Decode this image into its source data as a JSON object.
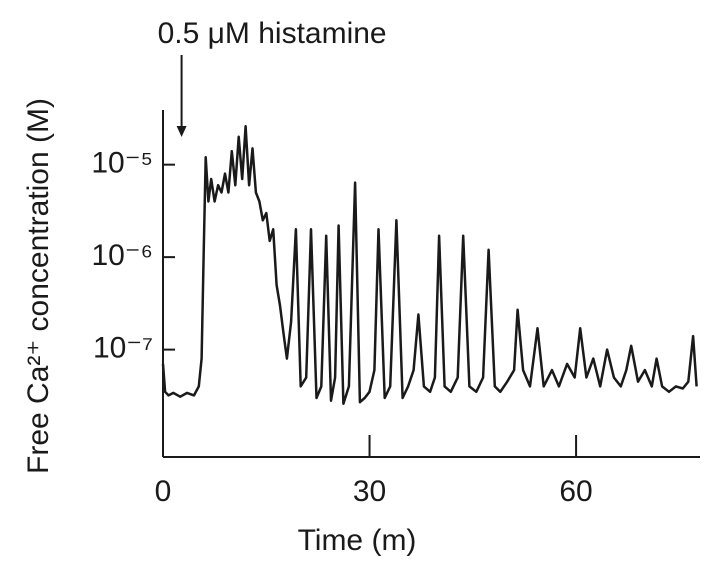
{
  "chart_data": {
    "type": "line",
    "annotation": {
      "text": "0.5 μM histamine",
      "x": 2.7
    },
    "x_label": "Time (m)",
    "y_label": "Free Ca²⁺ concentration (M)",
    "color": "#1a1a1a",
    "ylog": true,
    "grid": false,
    "xlim": [
      0,
      78
    ],
    "xticks": [
      0,
      30,
      60
    ],
    "ylim": [
      6.9e-09,
      3.9e-05
    ],
    "yticks": [
      {
        "value": 1e-07,
        "label": "10⁻⁷"
      },
      {
        "value": 1e-06,
        "label": "10⁻⁶"
      },
      {
        "value": 1e-05,
        "label": "10⁻⁵"
      }
    ],
    "x": [
      0,
      0.3,
      0.8,
      1.5,
      2.5,
      3.5,
      4.5,
      5.2,
      5.6,
      5.9,
      6.2,
      6.6,
      7,
      7.5,
      8,
      8.5,
      9,
      9.5,
      10,
      10.5,
      11,
      11.5,
      12,
      12.5,
      13,
      13.5,
      14,
      14.5,
      15,
      15.5,
      16,
      16.5,
      17,
      17.5,
      18,
      18.6,
      19.3,
      20,
      20.8,
      21.5,
      22.3,
      23,
      23.7,
      24.4,
      25,
      25.5,
      26.2,
      27,
      27.9,
      28.6,
      29.3,
      30,
      30.7,
      31.3,
      32.2,
      33,
      33.9,
      34.8,
      35.6,
      36.4,
      37.1,
      37.9,
      38.8,
      39.5,
      40.1,
      40.9,
      41.8,
      42.8,
      43.6,
      44.5,
      45.5,
      46.5,
      47.3,
      48.2,
      49,
      50,
      51,
      51.5,
      52.3,
      53.3,
      54.4,
      55.3,
      56.5,
      57.5,
      58.7,
      59.8,
      60.6,
      61.5,
      62.5,
      63.5,
      64.5,
      65.5,
      66.5,
      67.3,
      68,
      69,
      70,
      71,
      71.7,
      72.5,
      73.5,
      74.5,
      75.5,
      76.3,
      77,
      77.5
    ],
    "values": [
      7e-08,
      3.5e-08,
      3.2e-08,
      3.4e-08,
      3.1e-08,
      3.4e-08,
      3.2e-08,
      4e-08,
      8e-08,
      1e-06,
      1.2e-05,
      4e-06,
      7e-06,
      4e-06,
      6e-06,
      5e-06,
      8e-06,
      5e-06,
      1.4e-05,
      6e-06,
      2e-05,
      7e-06,
      2.6e-05,
      6e-06,
      1.5e-05,
      5e-06,
      4e-06,
      2.5e-06,
      3e-06,
      1.5e-06,
      2e-06,
      5e-07,
      3e-07,
      1.5e-07,
      8e-08,
      2e-07,
      2e-06,
      4e-08,
      5e-08,
      2e-06,
      3e-08,
      4e-08,
      1.7e-06,
      2.8e-08,
      5e-08,
      2.2e-06,
      2.6e-08,
      4e-08,
      6.4e-06,
      2.7e-08,
      3e-08,
      3.5e-08,
      6e-08,
      2e-06,
      3e-08,
      4e-08,
      2.5e-06,
      3e-08,
      4e-08,
      6e-08,
      2.4e-07,
      4e-08,
      3.5e-08,
      5e-08,
      1.7e-06,
      4e-08,
      3.5e-08,
      5e-08,
      1.7e-06,
      4e-08,
      3.5e-08,
      5e-08,
      1.2e-06,
      4e-08,
      3.5e-08,
      4.5e-08,
      6e-08,
      2.7e-07,
      6e-08,
      4e-08,
      1.7e-07,
      4e-08,
      6e-08,
      4e-08,
      7e-08,
      5e-08,
      1.7e-07,
      5e-08,
      8e-08,
      4e-08,
      1e-07,
      5e-08,
      4e-08,
      6e-08,
      1.1e-07,
      4.5e-08,
      6e-08,
      4e-08,
      8e-08,
      4e-08,
      3.5e-08,
      4e-08,
      3.8e-08,
      4.5e-08,
      1.4e-07,
      4e-08
    ]
  }
}
